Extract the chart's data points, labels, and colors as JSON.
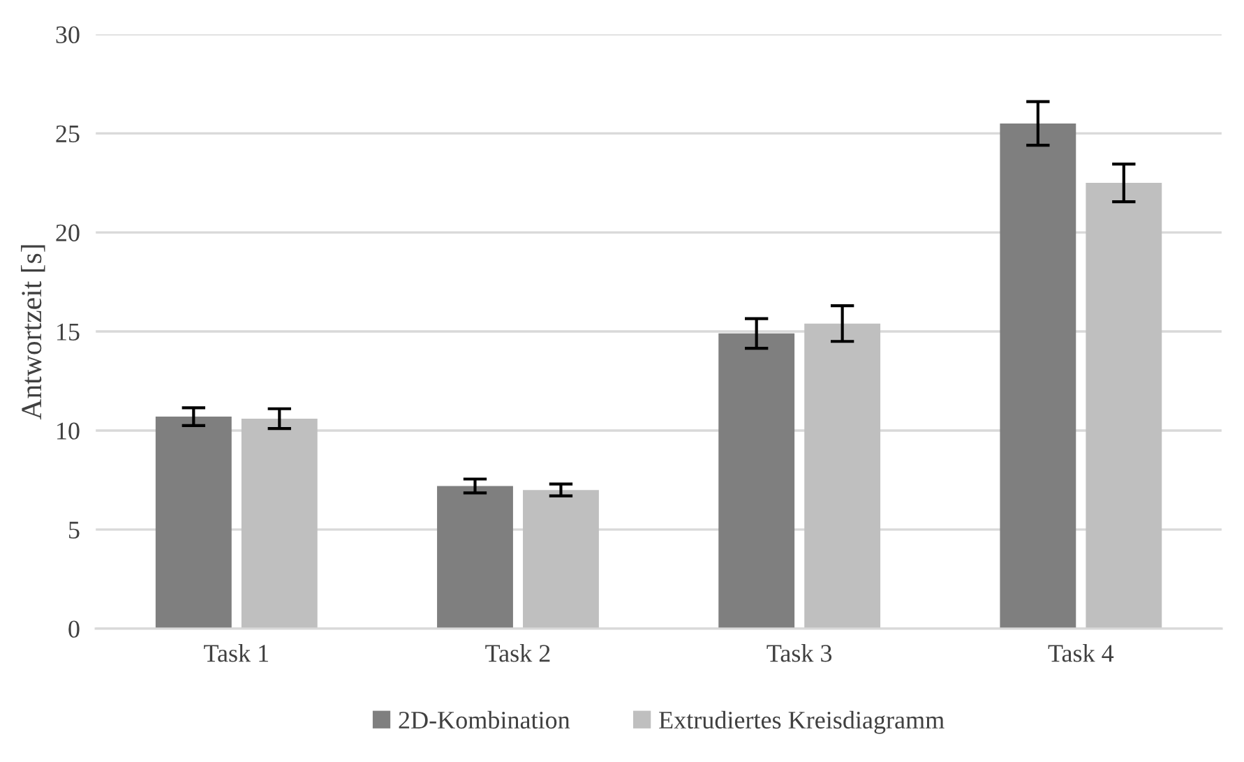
{
  "chart_data": {
    "type": "bar",
    "ylabel": "Antwortzeit [s]",
    "categories": [
      "Task 1",
      "Task 2",
      "Task 3",
      "Task 4"
    ],
    "series": [
      {
        "name": "2D-Kombination",
        "color": "#7f7f7f",
        "values": [
          10.7,
          7.2,
          14.9,
          25.5
        ],
        "errors": [
          0.45,
          0.35,
          0.75,
          1.1
        ]
      },
      {
        "name": "Extrudiertes Kreisdiagramm",
        "color": "#bfbfbf",
        "values": [
          10.6,
          7.0,
          15.4,
          22.5
        ],
        "errors": [
          0.5,
          0.3,
          0.9,
          0.95
        ]
      }
    ],
    "ylim": [
      0,
      30
    ],
    "yticks": [
      0,
      5,
      10,
      15,
      20,
      25,
      30
    ],
    "grid": "y",
    "legend": "bottom"
  }
}
